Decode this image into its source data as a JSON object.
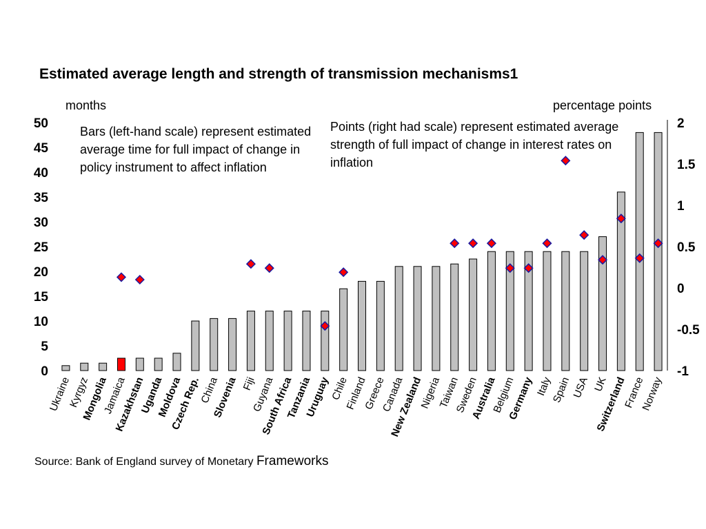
{
  "chart_data": {
    "type": "bar",
    "title": "Estimated average length and strength of transmission mechanisms1",
    "y_left_label": "months",
    "y_right_label": "percentage points",
    "ylim_left": [
      0,
      50
    ],
    "ylim_right": [
      -1,
      2
    ],
    "left_ticks": [
      0,
      5,
      10,
      15,
      20,
      25,
      30,
      35,
      40,
      45,
      50
    ],
    "right_ticks": [
      "-1",
      "-0.5",
      "0",
      "0.5",
      "1",
      "1.5",
      "2"
    ],
    "categories": [
      "Ukraine",
      "Kyrgyz",
      "Mongolia",
      "Jamaica",
      "Kazakhstan",
      "Uganda",
      "Moldova",
      "Czech Rep.",
      "China",
      "Slovenia",
      "Fiji",
      "Guyana",
      "South Africa",
      "Tanzania",
      "Uruguay",
      "Chile",
      "Finland",
      "Greece",
      "Canada",
      "New Zealand",
      "Nigeria",
      "Taiwan",
      "Sweden",
      "Australia",
      "Belgium",
      "Germany",
      "Italy",
      "Spain",
      "USA",
      "UK",
      "Switzerland",
      "France",
      "Norway"
    ],
    "bold_categories": [
      "Mongolia",
      "Kazakhstan",
      "Uganda",
      "Moldova",
      "Czech Rep.",
      "Slovenia",
      "South Africa",
      "Tanzania",
      "Uruguay",
      "New Zealand",
      "Australia",
      "Germany",
      "Switzerland"
    ],
    "highlighted_category": "Jamaica",
    "series": [
      {
        "axis": "left",
        "kind": "bar",
        "values": [
          1,
          1.5,
          1.5,
          2.5,
          2.5,
          2.5,
          3.5,
          10,
          10.5,
          10.5,
          12,
          12,
          12,
          12,
          12,
          16.5,
          18,
          18,
          21,
          21,
          21,
          21.5,
          22.5,
          24,
          24,
          24,
          24,
          24,
          24,
          27,
          36,
          48,
          48
        ]
      },
      {
        "axis": "right",
        "kind": "point",
        "values": [
          null,
          null,
          null,
          0.13,
          0.1,
          null,
          null,
          null,
          null,
          null,
          0.29,
          0.24,
          null,
          null,
          -0.46,
          0.19,
          null,
          null,
          null,
          null,
          null,
          0.54,
          0.54,
          0.54,
          0.24,
          0.24,
          0.54,
          1.54,
          0.64,
          0.34,
          0.84,
          0.36,
          0.54
        ]
      }
    ],
    "notes": {
      "bars": "Bars  (left-hand scale) represent estimated average time for full impact of change in policy instrument to affect inflation",
      "points": "Points (right had scale) represent estimated average strength of full impact of change in interest rates on inflation"
    },
    "colors": {
      "bar": "#c0c0c0",
      "bar_highlight": "#ff0000",
      "point_fill": "#ff0000",
      "point_stroke": "#1a1aa0"
    }
  },
  "source": {
    "prefix": "Source:  Bank of England survey of Monetary ",
    "suffix": "Frameworks"
  }
}
